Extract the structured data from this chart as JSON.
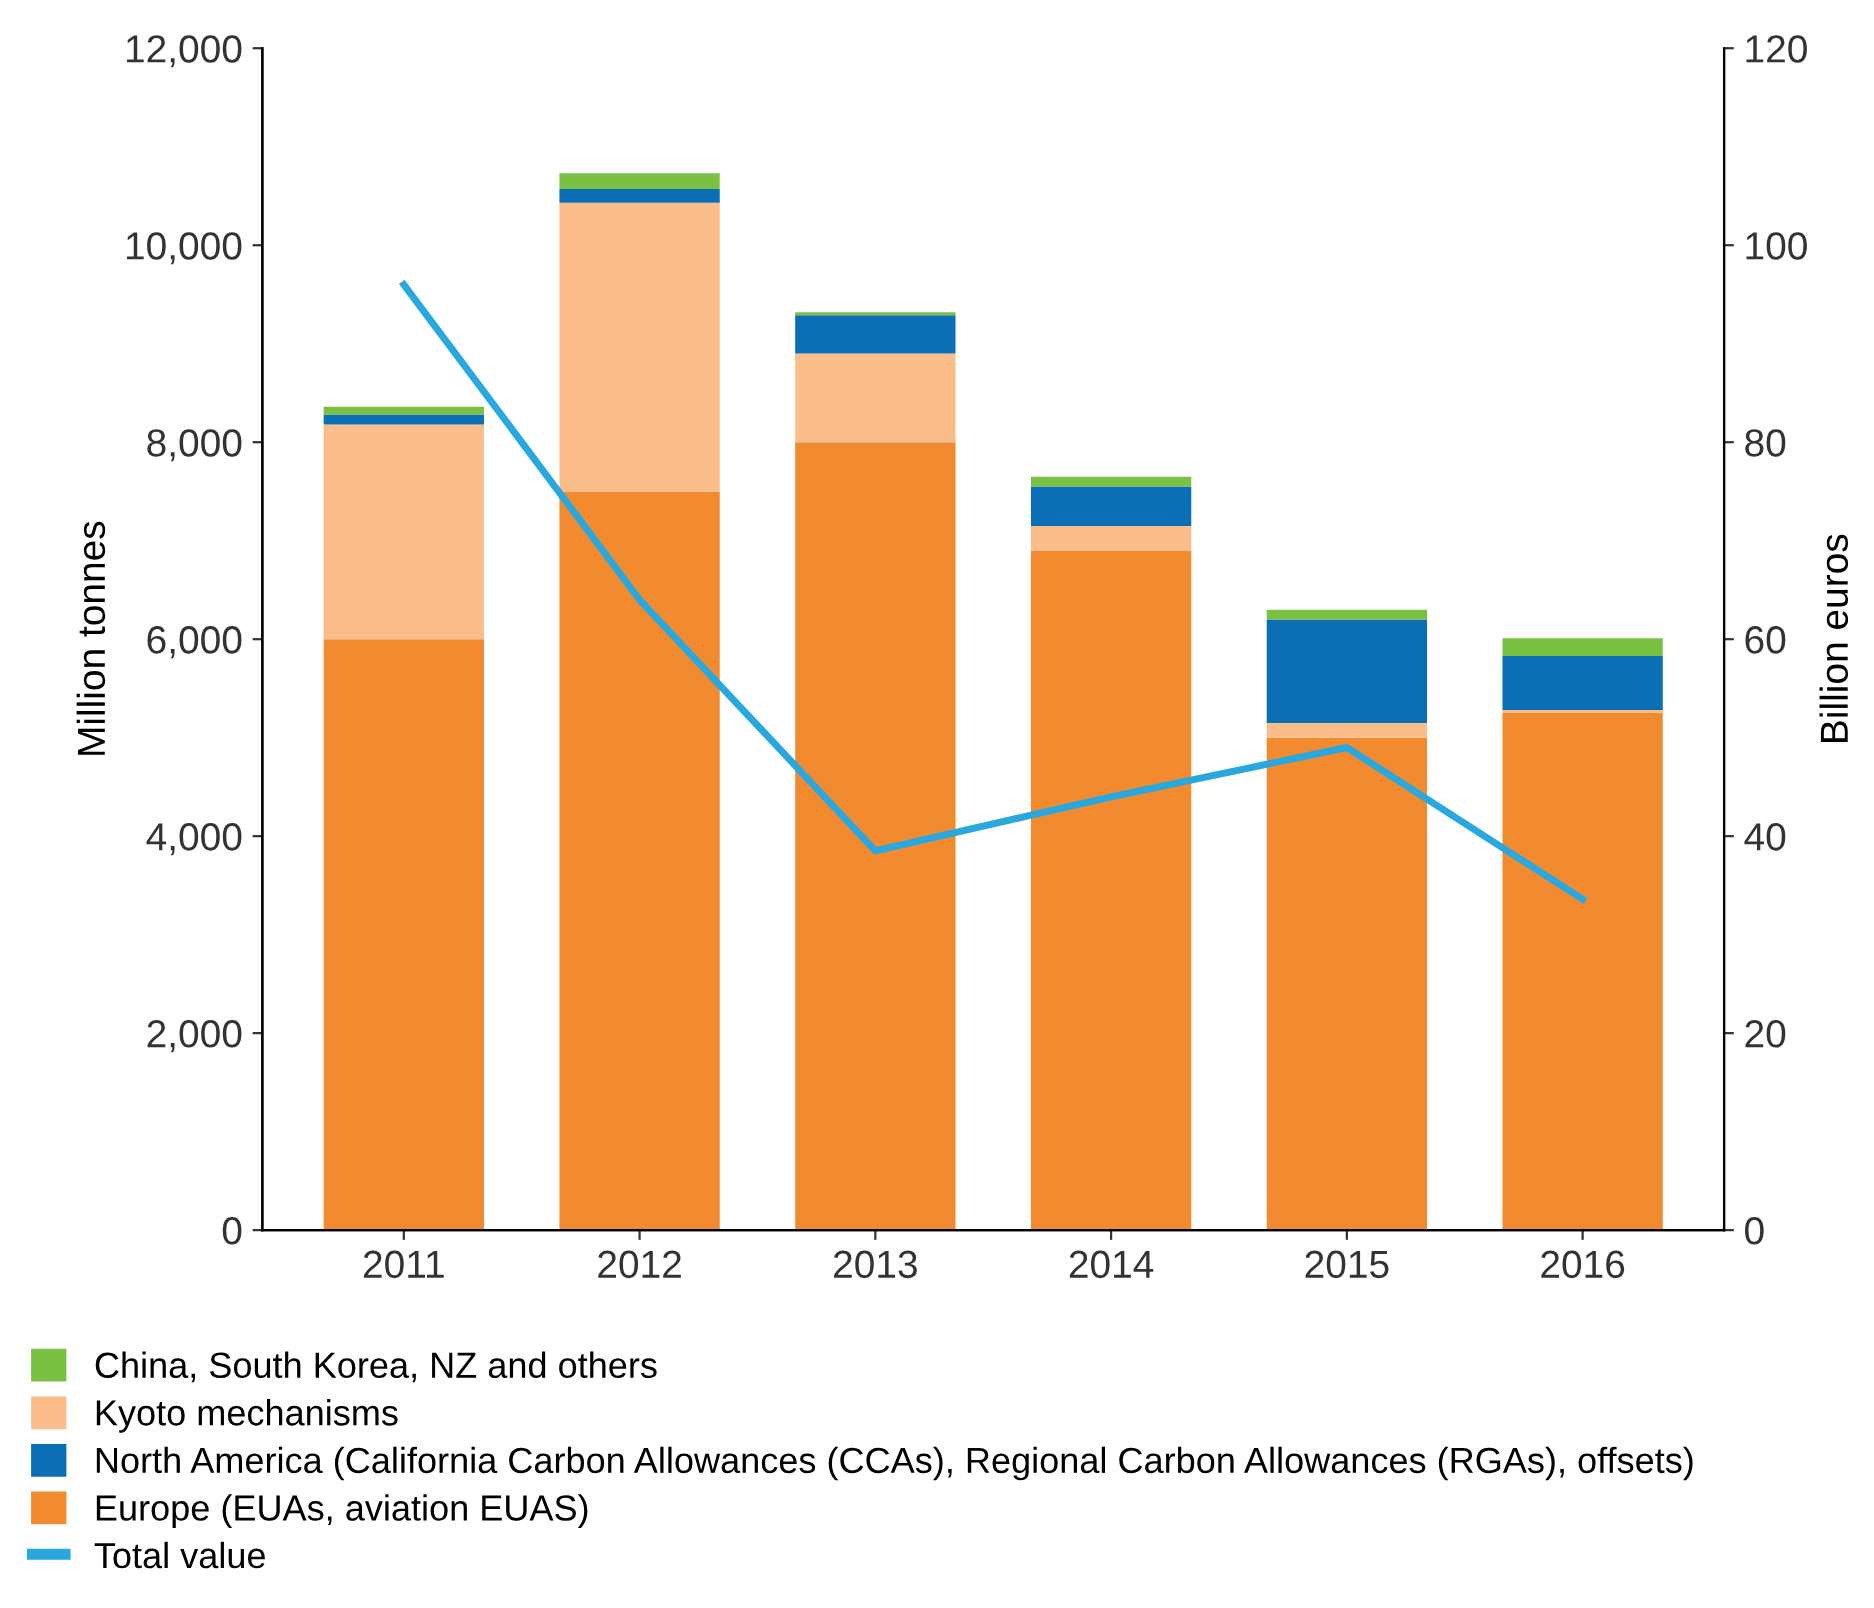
{
  "chart_data": {
    "type": "bar",
    "stacked": true,
    "categories": [
      "2011",
      "2012",
      "2013",
      "2014",
      "2015",
      "2016"
    ],
    "ylabel": "Million tonnes",
    "y2label": "Billion euros",
    "ylim": [
      0,
      12000
    ],
    "yticks": [
      {
        "value": 0,
        "label": "0"
      },
      {
        "value": 2000,
        "label": "2,000"
      },
      {
        "value": 4000,
        "label": "4,000"
      },
      {
        "value": 6000,
        "label": "6,000"
      },
      {
        "value": 8000,
        "label": "8,000"
      },
      {
        "value": 10000,
        "label": "10,000"
      },
      {
        "value": 12000,
        "label": "12,000"
      }
    ],
    "y2lim": [
      0,
      120
    ],
    "y2ticks": [
      0,
      20,
      40,
      60,
      80,
      100,
      120
    ],
    "grid": false,
    "legend": "bottom",
    "series": [
      {
        "name": "Europe (EUAs, aviation EUAS)",
        "color": "#f28a30",
        "values": [
          6000,
          7500,
          8000,
          6900,
          5000,
          5250
        ]
      },
      {
        "name": "Kyoto mechanisms",
        "color": "#fbbd8a",
        "values": [
          2180,
          2930,
          900,
          250,
          150,
          30
        ]
      },
      {
        "name": "North America (California Carbon Allowances (CCAs), Regional Carbon Allowances (RGAs), offsets)",
        "color": "#0a6fb5",
        "values": [
          100,
          140,
          390,
          400,
          1050,
          550
        ]
      },
      {
        "name": "China, South Korea, NZ and others",
        "color": "#7ac143",
        "values": [
          80,
          160,
          30,
          100,
          100,
          180
        ]
      },
      {
        "name": "Total value",
        "type": "line",
        "axis": "y2",
        "color": "#29a8e0",
        "marker": "none",
        "values": [
          96,
          64,
          38.5,
          44,
          49,
          33.6
        ]
      }
    ]
  }
}
